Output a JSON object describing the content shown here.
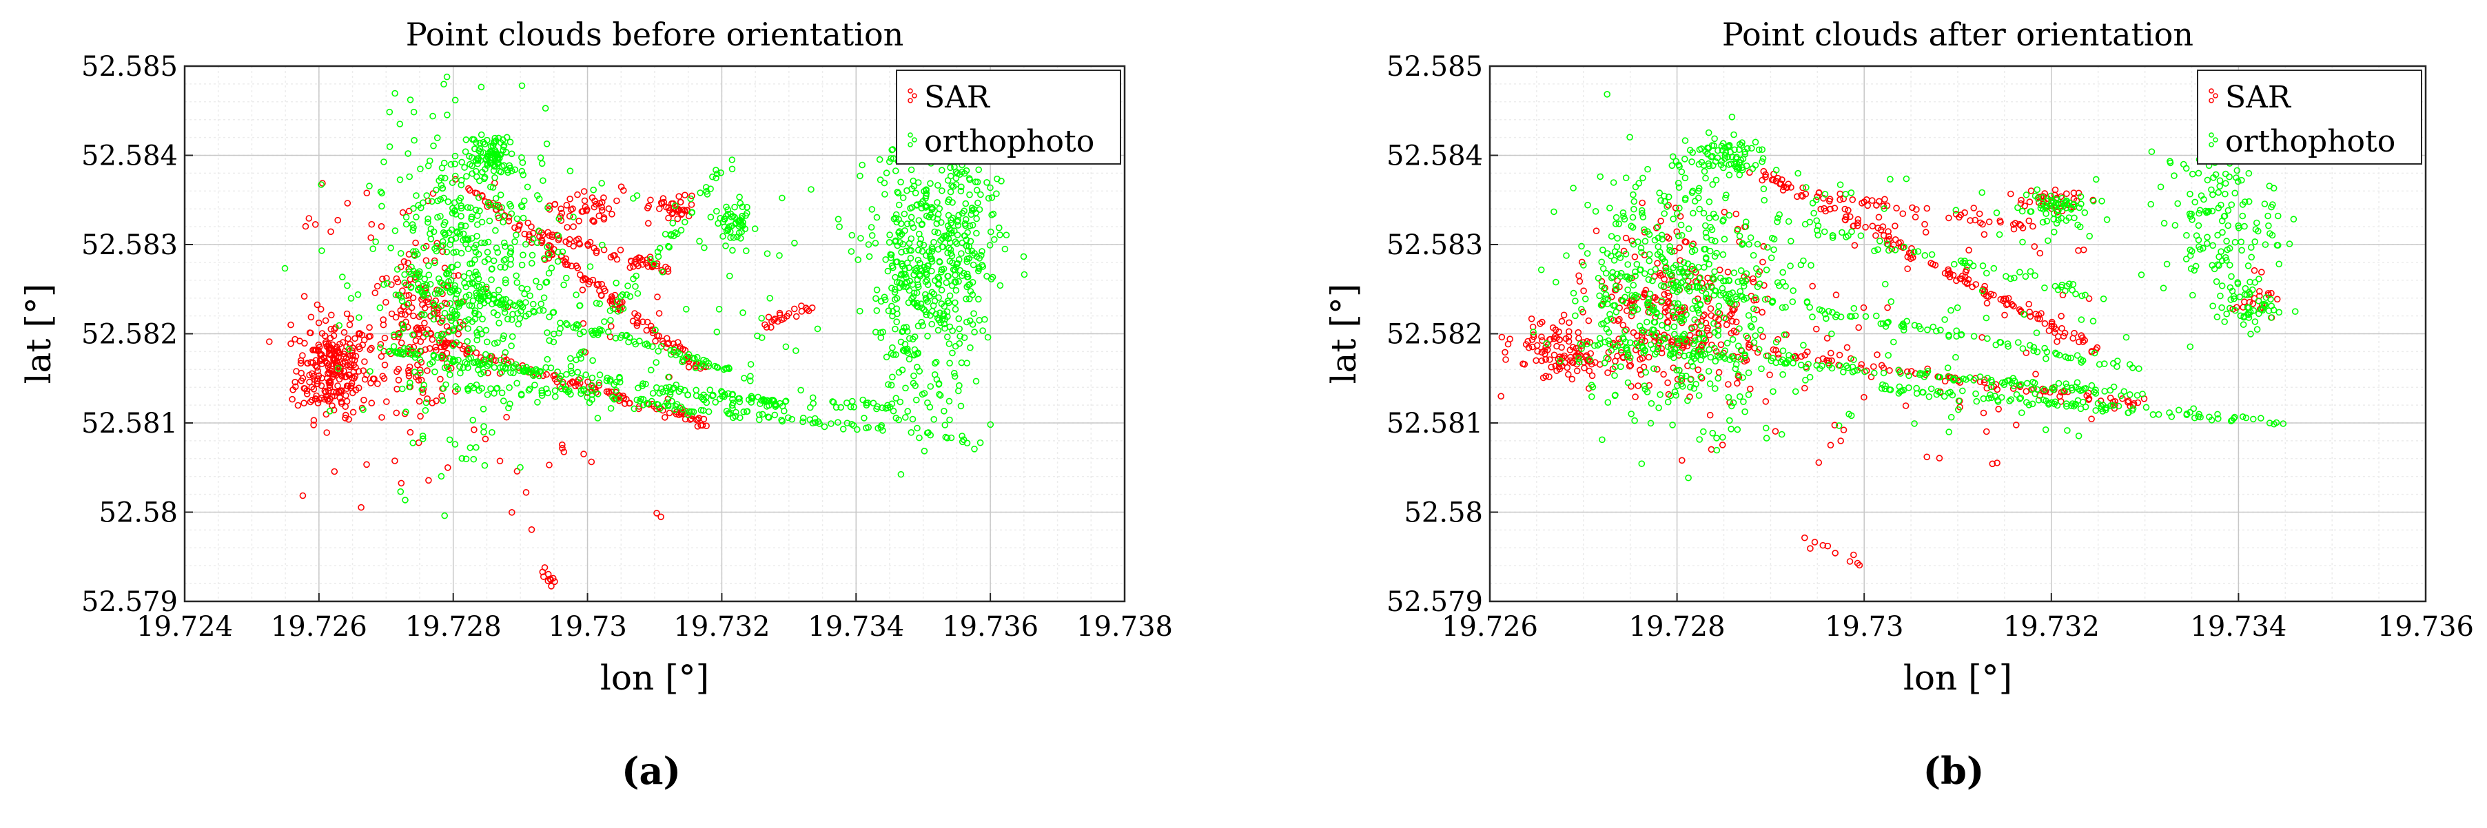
{
  "colors": {
    "sar": "#ff0000",
    "orthophoto": "#00ff00",
    "grid": "#c8c8c8",
    "axis": "#262626"
  },
  "panels": [
    {
      "panel_label": "(a)",
      "chart_data": {
        "type": "scatter",
        "title": "Point clouds before orientation",
        "xlabel": "lon [°]",
        "ylabel": "lat [°]",
        "xlim": [
          19.724,
          19.738
        ],
        "ylim": [
          52.579,
          52.585
        ],
        "xticks": [
          "19.724",
          "19.726",
          "19.728",
          "19.73",
          "19.732",
          "19.734",
          "19.736",
          "19.738"
        ],
        "yticks": [
          "52.585",
          "52.584",
          "52.583",
          "52.582",
          "52.581",
          "52.58",
          "52.579"
        ],
        "grid": true,
        "legend_position": "top-right",
        "series": [
          {
            "name": "SAR",
            "color": "#ff0000",
            "marker": "open-circle",
            "clusters": [
              {
                "kind": "blob",
                "center": [
                  19.7262,
                  52.5816
                ],
                "spread": [
                  0.00045,
                  0.00045
                ],
                "count": 240
              },
              {
                "kind": "blob",
                "center": [
                  19.7275,
                  52.582
                ],
                "spread": [
                  0.0006,
                  0.0007
                ],
                "count": 180
              },
              {
                "kind": "line",
                "from": [
                  19.7283,
                  52.5836
                ],
                "to": [
                  19.7317,
                  52.5816
                ],
                "count": 130
              },
              {
                "kind": "line",
                "from": [
                  19.7278,
                  52.5819
                ],
                "to": [
                  19.7318,
                  52.581
                ],
                "count": 110
              },
              {
                "kind": "line",
                "from": [
                  19.729,
                  52.5832
                ],
                "to": [
                  19.7312,
                  52.5827
                ],
                "count": 60
              },
              {
                "kind": "blob",
                "center": [
                  19.7299,
                  52.5834
                ],
                "spread": [
                  0.0004,
                  0.00015
                ],
                "count": 40
              },
              {
                "kind": "blob",
                "center": [
                  19.7313,
                  52.5834
                ],
                "spread": [
                  0.0003,
                  0.00012
                ],
                "count": 35
              },
              {
                "kind": "line",
                "from": [
                  19.7326,
                  52.5821
                ],
                "to": [
                  19.7333,
                  52.5823
                ],
                "count": 22
              },
              {
                "kind": "line",
                "from": [
                  19.7292,
                  52.5795
                ],
                "to": [
                  19.7295,
                  52.5792
                ],
                "count": 10
              },
              {
                "kind": "scatter",
                "center": [
                  19.7285,
                  52.5818
                ],
                "spread": [
                  0.003,
                  0.002
                ],
                "count": 90
              }
            ]
          },
          {
            "name": "orthophoto",
            "color": "#00ff00",
            "marker": "open-circle",
            "clusters": [
              {
                "kind": "blob",
                "center": [
                  19.7282,
                  52.5826
                ],
                "spread": [
                  0.0012,
                  0.0014
                ],
                "count": 480
              },
              {
                "kind": "line",
                "from": [
                  19.727,
                  52.5818
                ],
                "to": [
                  19.733,
                  52.5812
                ],
                "count": 150
              },
              {
                "kind": "line",
                "from": [
                  19.7272,
                  52.5827
                ],
                "to": [
                  19.7325,
                  52.5815
                ],
                "count": 120
              },
              {
                "kind": "line",
                "from": [
                  19.73,
                  52.5813
                ],
                "to": [
                  19.736,
                  52.5808
                ],
                "count": 90
              },
              {
                "kind": "line",
                "from": [
                  19.728,
                  52.5814
                ],
                "to": [
                  19.7345,
                  52.5812
                ],
                "count": 70
              },
              {
                "kind": "blob",
                "center": [
                  19.735,
                  52.5826
                ],
                "spread": [
                  0.0007,
                  0.0013
                ],
                "count": 450
              },
              {
                "kind": "blob",
                "center": [
                  19.7357,
                  52.5833
                ],
                "spread": [
                  0.0004,
                  0.001
                ],
                "count": 120
              },
              {
                "kind": "blob",
                "center": [
                  19.7322,
                  52.5832
                ],
                "spread": [
                  0.0002,
                  0.00015
                ],
                "count": 50
              },
              {
                "kind": "line",
                "from": [
                  19.7298,
                  52.5817
                ],
                "to": [
                  19.7322,
                  52.584
                ],
                "count": 45
              },
              {
                "kind": "blob",
                "center": [
                  19.7286,
                  52.584
                ],
                "spread": [
                  0.0003,
                  0.0002
                ],
                "count": 90
              },
              {
                "kind": "scatter",
                "center": [
                  19.7305,
                  52.5825
                ],
                "spread": [
                  0.003,
                  0.0015
                ],
                "count": 100
              }
            ]
          }
        ]
      }
    },
    {
      "panel_label": "(b)",
      "chart_data": {
        "type": "scatter",
        "title": "Point clouds after orientation",
        "xlabel": "lon [°]",
        "ylabel": "lat [°]",
        "xlim": [
          19.726,
          19.736
        ],
        "ylim": [
          52.579,
          52.585
        ],
        "xticks": [
          "19.726",
          "19.728",
          "19.73",
          "19.732",
          "19.734",
          "19.736"
        ],
        "yticks": [
          "52.585",
          "52.584",
          "52.583",
          "52.582",
          "52.581",
          "52.58",
          "52.579"
        ],
        "grid": true,
        "legend_position": "top-right",
        "series": [
          {
            "name": "SAR",
            "color": "#ff0000",
            "marker": "open-circle",
            "clusters": [
              {
                "kind": "blob",
                "center": [
                  19.7268,
                  52.5818
                ],
                "spread": [
                  0.0005,
                  0.0003
                ],
                "count": 120
              },
              {
                "kind": "blob",
                "center": [
                  19.728,
                  52.5822
                ],
                "spread": [
                  0.0008,
                  0.0007
                ],
                "count": 240
              },
              {
                "kind": "line",
                "from": [
                  19.7289,
                  52.5838
                ],
                "to": [
                  19.7325,
                  52.5818
                ],
                "count": 140
              },
              {
                "kind": "line",
                "from": [
                  19.7275,
                  52.582
                ],
                "to": [
                  19.733,
                  52.5812
                ],
                "count": 110
              },
              {
                "kind": "line",
                "from": [
                  19.7292,
                  52.5836
                ],
                "to": [
                  19.7318,
                  52.5832
                ],
                "count": 45
              },
              {
                "kind": "blob",
                "center": [
                  19.732,
                  52.5835
                ],
                "spread": [
                  0.0003,
                  0.0001
                ],
                "count": 35
              },
              {
                "kind": "blob",
                "center": [
                  19.7342,
                  52.5824
                ],
                "spread": [
                  0.0002,
                  0.0002
                ],
                "count": 20
              },
              {
                "kind": "line",
                "from": [
                  19.7293,
                  52.5797
                ],
                "to": [
                  19.7302,
                  52.5793
                ],
                "count": 10
              },
              {
                "kind": "scatter",
                "center": [
                  19.73,
                  52.582
                ],
                "spread": [
                  0.0025,
                  0.0015
                ],
                "count": 90
              }
            ]
          },
          {
            "name": "orthophoto",
            "color": "#00ff00",
            "marker": "open-circle",
            "clusters": [
              {
                "kind": "blob",
                "center": [
                  19.728,
                  52.5825
                ],
                "spread": [
                  0.001,
                  0.0012
                ],
                "count": 480
              },
              {
                "kind": "line",
                "from": [
                  19.727,
                  52.5819
                ],
                "to": [
                  19.733,
                  52.5813
                ],
                "count": 150
              },
              {
                "kind": "line",
                "from": [
                  19.73,
                  52.5814
                ],
                "to": [
                  19.7345,
                  52.581
                ],
                "count": 110
              },
              {
                "kind": "line",
                "from": [
                  19.7272,
                  52.5827
                ],
                "to": [
                  19.733,
                  52.5816
                ],
                "count": 110
              },
              {
                "kind": "blob",
                "center": [
                  19.7338,
                  52.5833
                ],
                "spread": [
                  0.0005,
                  0.0008
                ],
                "count": 150
              },
              {
                "kind": "blob",
                "center": [
                  19.7341,
                  52.5823
                ],
                "spread": [
                  0.0003,
                  0.0002
                ],
                "count": 50
              },
              {
                "kind": "blob",
                "center": [
                  19.732,
                  52.5834
                ],
                "spread": [
                  0.0003,
                  0.0002
                ],
                "count": 60
              },
              {
                "kind": "blob",
                "center": [
                  19.7285,
                  52.584
                ],
                "spread": [
                  0.0004,
                  0.0002
                ],
                "count": 80
              },
              {
                "kind": "line",
                "from": [
                  19.729,
                  52.5833
                ],
                "to": [
                  19.7326,
                  52.5824
                ],
                "count": 55
              },
              {
                "kind": "scatter",
                "center": [
                  19.7305,
                  52.5823
                ],
                "spread": [
                  0.0025,
                  0.0015
                ],
                "count": 90
              }
            ]
          }
        ]
      }
    }
  ]
}
